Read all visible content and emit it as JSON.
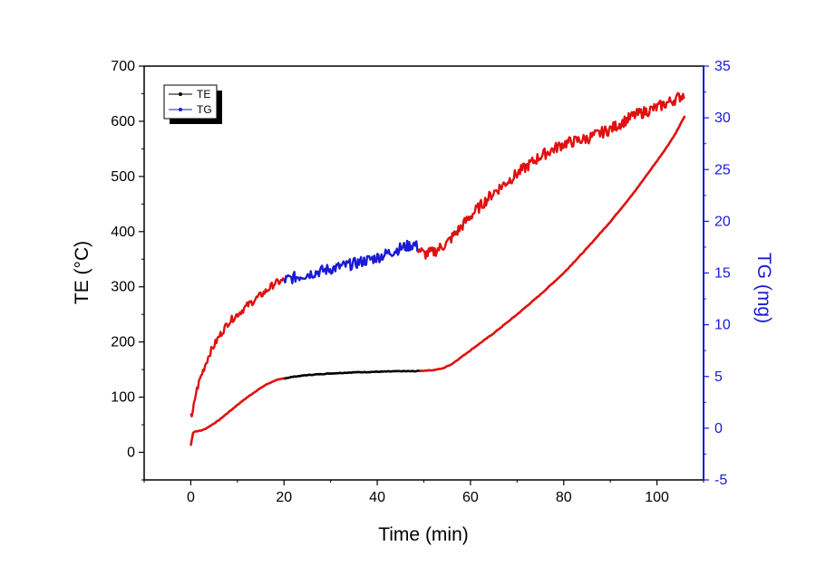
{
  "chart_data": {
    "type": "line",
    "xlabel": "Time (min)",
    "ylabel_left": "TE (°C)",
    "ylabel_right": "TG (mg)",
    "xlim": [
      -10,
      110
    ],
    "ylim_left": [
      -50,
      700
    ],
    "ylim_right": [
      -5,
      35
    ],
    "x_ticks": [
      0,
      20,
      40,
      60,
      80,
      100
    ],
    "y_left_ticks": [
      0,
      100,
      200,
      300,
      400,
      500,
      600,
      700
    ],
    "y_right_ticks": [
      -5,
      0,
      5,
      10,
      15,
      20,
      25,
      30,
      35
    ],
    "legend": {
      "position": "top-left",
      "entries": [
        "TE",
        "TG"
      ]
    },
    "colors": {
      "te": "#000000",
      "tg": "#1a1ad6",
      "highlight": "#e01010",
      "right_axis": "#1a1ad6"
    },
    "series": [
      {
        "name": "TE",
        "axis": "left",
        "x": [
          0,
          0.5,
          1,
          2,
          3,
          4,
          6,
          8,
          10,
          12,
          14,
          16,
          18,
          20,
          22,
          25,
          30,
          35,
          40,
          45,
          48,
          50,
          52,
          54,
          56,
          60,
          65,
          70,
          75,
          80,
          85,
          90,
          95,
          100,
          102,
          104,
          106
        ],
        "y": [
          12,
          36,
          38,
          39,
          42,
          47,
          58,
          72,
          86,
          99,
          111,
          122,
          130,
          134,
          137,
          140,
          143,
          145,
          146,
          147,
          147,
          148,
          149,
          152,
          160,
          185,
          216,
          250,
          286,
          325,
          370,
          418,
          470,
          528,
          552,
          578,
          610
        ]
      },
      {
        "name": "TG",
        "axis": "right",
        "x": [
          0,
          0.2,
          1,
          2,
          3,
          4,
          6,
          8,
          10,
          12,
          14,
          16,
          18,
          20,
          25,
          30,
          35,
          40,
          45,
          48,
          50,
          52,
          55,
          60,
          65,
          70,
          75,
          80,
          85,
          90,
          95,
          100,
          103,
          106
        ],
        "y": [
          1.5,
          0.8,
          3.2,
          4.8,
          6.0,
          7.2,
          8.8,
          10.2,
          11.0,
          11.8,
          12.5,
          13.2,
          14.0,
          14.3,
          14.9,
          15.4,
          15.9,
          16.5,
          17.4,
          17.8,
          16.8,
          17.0,
          17.9,
          20.5,
          22.8,
          24.6,
          26.3,
          27.5,
          28.0,
          28.9,
          30.2,
          31.0,
          31.6,
          32.3
        ]
      }
    ]
  }
}
